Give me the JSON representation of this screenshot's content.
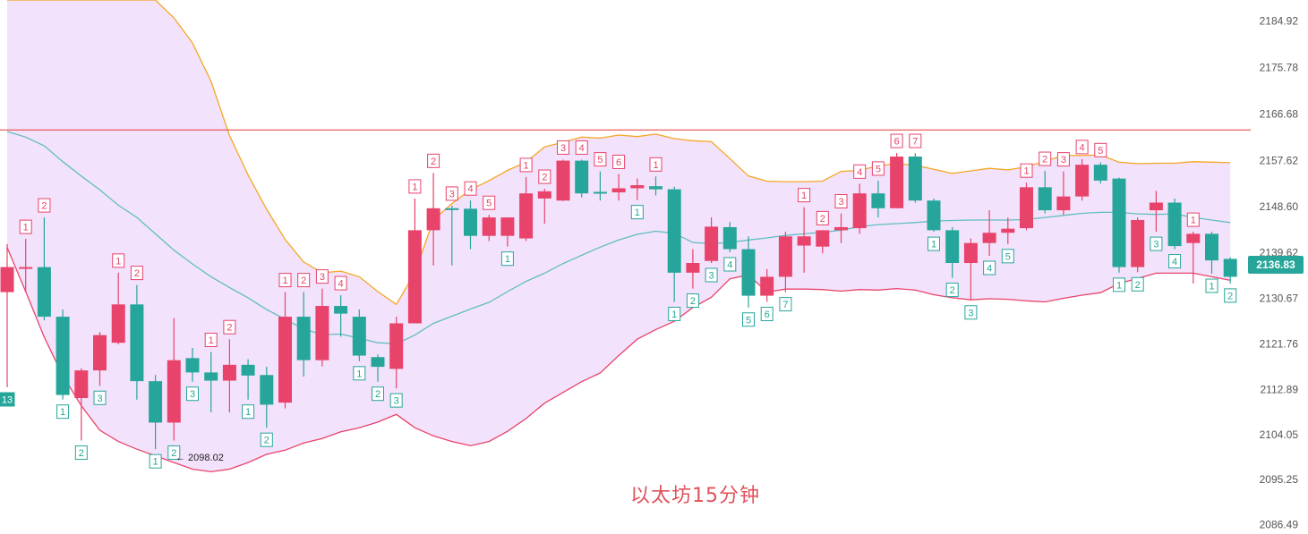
{
  "chart_data": {
    "type": "candlestick",
    "title": "以太坊15分钟",
    "colors": {
      "up": "#e8436b",
      "down": "#26a69a",
      "band_fill": "#f3e2fb",
      "upper_band": "#f5a623",
      "lower_band": "#e8436b",
      "middle_band": "#5fbfc0",
      "resistance_line": "#e53935",
      "current_price_bg": "#26a69a",
      "label_text": "#555555"
    },
    "y_axis": {
      "range": [
        2085.5,
        2189.0
      ],
      "ticks": [
        "2184.92",
        "2175.78",
        "2166.68",
        "2157.62",
        "2148.60",
        "2139.62",
        "2130.67",
        "2121.76",
        "2112.89",
        "2104.05",
        "2095.25",
        "2086.49"
      ],
      "tick_values": [
        2184.92,
        2175.78,
        2166.68,
        2157.62,
        2148.6,
        2139.62,
        2130.67,
        2121.76,
        2112.89,
        2104.05,
        2095.25,
        2086.49
      ]
    },
    "current_price": "2136.83",
    "low_annotation": "← 2098.02",
    "resistance_level": 2163.6,
    "candles": [
      {
        "o": 2131.9,
        "h": 2141.3,
        "l": 2113.3,
        "c": 2136.8,
        "cnt": "13",
        "pos": "below"
      },
      {
        "o": 2136.8,
        "h": 2142.3,
        "l": 2131.9,
        "c": 2136.8,
        "cnt": "1",
        "pos": "above"
      },
      {
        "o": 2136.8,
        "h": 2146.5,
        "l": 2126.4,
        "c": 2127.1,
        "cnt": "2",
        "pos": "above"
      },
      {
        "o": 2127.1,
        "h": 2128.5,
        "l": 2110.9,
        "c": 2111.8,
        "cnt": "1",
        "pos": "below"
      },
      {
        "o": 2111.2,
        "h": 2117.0,
        "l": 2102.9,
        "c": 2116.6,
        "cnt": "2",
        "pos": "below"
      },
      {
        "o": 2116.6,
        "h": 2124.1,
        "l": 2113.6,
        "c": 2123.5,
        "cnt": "3",
        "pos": "below"
      },
      {
        "o": 2122.0,
        "h": 2135.7,
        "l": 2121.7,
        "c": 2129.5,
        "cnt": "1",
        "pos": "above"
      },
      {
        "o": 2129.5,
        "h": 2133.3,
        "l": 2110.9,
        "c": 2114.5,
        "cnt": "2",
        "pos": "above"
      },
      {
        "o": 2114.5,
        "h": 2115.7,
        "l": 2101.2,
        "c": 2106.4,
        "cnt": "1",
        "pos": "below"
      },
      {
        "o": 2106.4,
        "h": 2126.8,
        "l": 2102.9,
        "c": 2118.6,
        "cnt": "2",
        "pos": "below"
      },
      {
        "o": 2119.0,
        "h": 2121.0,
        "l": 2114.4,
        "c": 2116.2,
        "cnt": "3",
        "pos": "below"
      },
      {
        "o": 2116.2,
        "h": 2120.2,
        "l": 2108.4,
        "c": 2114.6,
        "cnt": "1",
        "pos": "above"
      },
      {
        "o": 2114.6,
        "h": 2122.7,
        "l": 2108.4,
        "c": 2117.7,
        "cnt": "2",
        "pos": "above"
      },
      {
        "o": 2117.7,
        "h": 2118.8,
        "l": 2110.9,
        "c": 2115.6,
        "cnt": "1",
        "pos": "below"
      },
      {
        "o": 2115.7,
        "h": 2117.3,
        "l": 2105.4,
        "c": 2109.9,
        "cnt": "2",
        "pos": "below"
      },
      {
        "o": 2110.3,
        "h": 2131.9,
        "l": 2109.2,
        "c": 2127.1,
        "cnt": "1",
        "pos": "above"
      },
      {
        "o": 2127.1,
        "h": 2131.9,
        "l": 2115.4,
        "c": 2118.6,
        "cnt": "2",
        "pos": "above"
      },
      {
        "o": 2118.6,
        "h": 2132.6,
        "l": 2117.4,
        "c": 2129.2,
        "cnt": "3",
        "pos": "above"
      },
      {
        "o": 2129.2,
        "h": 2131.3,
        "l": 2123.2,
        "c": 2127.7,
        "cnt": "4",
        "pos": "above"
      },
      {
        "o": 2127.1,
        "h": 2128.5,
        "l": 2118.4,
        "c": 2119.5,
        "cnt": "1",
        "pos": "below"
      },
      {
        "o": 2119.2,
        "h": 2119.7,
        "l": 2114.4,
        "c": 2117.3,
        "cnt": "2",
        "pos": "below"
      },
      {
        "o": 2116.9,
        "h": 2127.1,
        "l": 2113.1,
        "c": 2125.8,
        "cnt": "3",
        "pos": "below"
      },
      {
        "o": 2125.8,
        "h": 2150.2,
        "l": 2125.8,
        "c": 2144.0,
        "cnt": "1",
        "pos": "above"
      },
      {
        "o": 2144.0,
        "h": 2155.2,
        "l": 2137.1,
        "c": 2148.3,
        "cnt": "2",
        "pos": "above"
      },
      {
        "o": 2148.3,
        "h": 2148.8,
        "l": 2137.1,
        "c": 2148.2,
        "cnt": "3",
        "pos": "above"
      },
      {
        "o": 2148.2,
        "h": 2149.8,
        "l": 2140.3,
        "c": 2142.9,
        "cnt": "4",
        "pos": "above"
      },
      {
        "o": 2142.9,
        "h": 2147.0,
        "l": 2141.9,
        "c": 2146.5,
        "cnt": "5",
        "pos": "above"
      },
      {
        "o": 2142.9,
        "h": 2146.5,
        "l": 2140.8,
        "c": 2146.5,
        "cnt": "1",
        "pos": "below"
      },
      {
        "o": 2142.4,
        "h": 2154.4,
        "l": 2141.9,
        "c": 2151.2,
        "cnt": "1",
        "pos": "above"
      },
      {
        "o": 2150.2,
        "h": 2152.1,
        "l": 2145.3,
        "c": 2151.6,
        "cnt": "2",
        "pos": "above"
      },
      {
        "o": 2149.8,
        "h": 2157.8,
        "l": 2149.7,
        "c": 2157.6,
        "cnt": "3",
        "pos": "above"
      },
      {
        "o": 2157.6,
        "h": 2157.8,
        "l": 2150.4,
        "c": 2151.2,
        "cnt": "4",
        "pos": "above"
      },
      {
        "o": 2151.5,
        "h": 2155.5,
        "l": 2149.8,
        "c": 2151.4,
        "cnt": "5",
        "pos": "above"
      },
      {
        "o": 2151.4,
        "h": 2155.0,
        "l": 2149.8,
        "c": 2152.2,
        "cnt": "6",
        "pos": "above"
      },
      {
        "o": 2152.2,
        "h": 2154.1,
        "l": 2149.9,
        "c": 2152.8,
        "cnt": "1",
        "pos": "below"
      },
      {
        "o": 2152.6,
        "h": 2154.5,
        "l": 2150.8,
        "c": 2152.0,
        "cnt": "1",
        "pos": "above"
      },
      {
        "o": 2152.0,
        "h": 2152.5,
        "l": 2130.0,
        "c": 2135.7,
        "cnt": "1",
        "pos": "below"
      },
      {
        "o": 2135.7,
        "h": 2140.3,
        "l": 2132.6,
        "c": 2137.6,
        "cnt": "2",
        "pos": "below"
      },
      {
        "o": 2138.0,
        "h": 2146.5,
        "l": 2137.6,
        "c": 2144.7,
        "cnt": "3",
        "pos": "below"
      },
      {
        "o": 2144.6,
        "h": 2145.6,
        "l": 2139.7,
        "c": 2140.3,
        "cnt": "4",
        "pos": "below"
      },
      {
        "o": 2140.3,
        "h": 2142.8,
        "l": 2128.9,
        "c": 2131.2,
        "cnt": "5",
        "pos": "below"
      },
      {
        "o": 2131.2,
        "h": 2136.4,
        "l": 2130.0,
        "c": 2134.9,
        "cnt": "6",
        "pos": "below"
      },
      {
        "o": 2134.9,
        "h": 2143.7,
        "l": 2131.9,
        "c": 2142.8,
        "cnt": "7",
        "pos": "below"
      },
      {
        "o": 2141.0,
        "h": 2148.5,
        "l": 2135.7,
        "c": 2142.8,
        "cnt": "1",
        "pos": "above"
      },
      {
        "o": 2140.8,
        "h": 2144.0,
        "l": 2139.5,
        "c": 2144.0,
        "cnt": "2",
        "pos": "above"
      },
      {
        "o": 2144.0,
        "h": 2147.3,
        "l": 2141.5,
        "c": 2144.6,
        "cnt": "3",
        "pos": "above"
      },
      {
        "o": 2144.4,
        "h": 2153.1,
        "l": 2143.3,
        "c": 2151.2,
        "cnt": "4",
        "pos": "above"
      },
      {
        "o": 2151.2,
        "h": 2153.7,
        "l": 2146.5,
        "c": 2148.3,
        "cnt": "5",
        "pos": "above"
      },
      {
        "o": 2148.3,
        "h": 2159.1,
        "l": 2148.3,
        "c": 2158.4,
        "cnt": "6",
        "pos": "above"
      },
      {
        "o": 2158.4,
        "h": 2159.1,
        "l": 2149.4,
        "c": 2149.8,
        "cnt": "7",
        "pos": "above"
      },
      {
        "o": 2149.8,
        "h": 2150.2,
        "l": 2143.7,
        "c": 2144.0,
        "cnt": "1",
        "pos": "below"
      },
      {
        "o": 2144.0,
        "h": 2144.6,
        "l": 2134.7,
        "c": 2137.6,
        "cnt": "2",
        "pos": "below"
      },
      {
        "o": 2137.6,
        "h": 2142.4,
        "l": 2130.3,
        "c": 2141.5,
        "cnt": "3",
        "pos": "below"
      },
      {
        "o": 2141.5,
        "h": 2147.9,
        "l": 2139.0,
        "c": 2143.5,
        "cnt": "4",
        "pos": "below"
      },
      {
        "o": 2143.5,
        "h": 2146.5,
        "l": 2141.3,
        "c": 2144.3,
        "cnt": "5",
        "pos": "below"
      },
      {
        "o": 2144.4,
        "h": 2153.3,
        "l": 2144.0,
        "c": 2152.4,
        "cnt": "1",
        "pos": "above"
      },
      {
        "o": 2152.4,
        "h": 2155.6,
        "l": 2147.3,
        "c": 2147.9,
        "cnt": "2",
        "pos": "above"
      },
      {
        "o": 2147.9,
        "h": 2155.5,
        "l": 2147.0,
        "c": 2150.6,
        "cnt": "3",
        "pos": "above"
      },
      {
        "o": 2150.6,
        "h": 2157.9,
        "l": 2149.8,
        "c": 2156.8,
        "cnt": "4",
        "pos": "above"
      },
      {
        "o": 2156.8,
        "h": 2157.3,
        "l": 2153.1,
        "c": 2153.7,
        "cnt": "5",
        "pos": "above"
      },
      {
        "o": 2154.1,
        "h": 2154.3,
        "l": 2135.7,
        "c": 2136.8,
        "cnt": "1",
        "pos": "below"
      },
      {
        "o": 2136.8,
        "h": 2146.5,
        "l": 2135.8,
        "c": 2146.0,
        "cnt": "2",
        "pos": "below"
      },
      {
        "o": 2147.9,
        "h": 2151.7,
        "l": 2143.7,
        "c": 2149.4,
        "cnt": "3",
        "pos": "below"
      },
      {
        "o": 2149.4,
        "h": 2150.2,
        "l": 2140.3,
        "c": 2140.9,
        "cnt": "4",
        "pos": "below"
      },
      {
        "o": 2141.5,
        "h": 2143.7,
        "l": 2133.6,
        "c": 2143.3,
        "cnt": "1",
        "pos": "above"
      },
      {
        "o": 2143.3,
        "h": 2143.7,
        "l": 2135.5,
        "c": 2138.1,
        "cnt": "1",
        "pos": "below"
      },
      {
        "o": 2138.4,
        "h": 2138.7,
        "l": 2133.6,
        "c": 2134.9,
        "cnt": "2",
        "pos": "below"
      }
    ],
    "upper_band": [
      [
        2189.0,
        2189.0,
        2189.0,
        2189.0,
        2189.0,
        2189.0,
        2189.0,
        2189.0,
        2189.0,
        2185.5,
        2180.6,
        2173.1,
        2162.5,
        2154.8,
        2148.1,
        2142.2,
        2137.8,
        2135.7,
        2136.0,
        2134.9,
        2132.0,
        2129.5,
        2135.7,
        2146.0,
        2149.2,
        2151.9,
        2153.7,
        2155.7,
        2157.3,
        2160.3,
        2161.2,
        2162.2,
        2162.0,
        2162.6,
        2162.3,
        2162.8,
        2161.9,
        2161.5,
        2161.3,
        2158.0,
        2154.6,
        2153.6,
        2153.5,
        2153.5,
        2153.6,
        2155.5,
        2155.7,
        2156.6,
        2157.0,
        2156.7,
        2155.9,
        2155.1,
        2155.6,
        2156.1,
        2155.8,
        2156.4,
        2157.5,
        2158.6,
        2158.6,
        2158.7,
        2157.3,
        2157.0,
        2157.1,
        2157.1,
        2157.4,
        2157.3,
        2157.2
      ]
    ],
    "middle_band": [
      2163.3,
      2162.2,
      2160.5,
      2157.4,
      2154.6,
      2151.9,
      2148.9,
      2146.5,
      2143.3,
      2140.1,
      2137.4,
      2134.9,
      2132.8,
      2130.8,
      2128.5,
      2126.6,
      2124.7,
      2123.6,
      2123.7,
      2122.9,
      2122.0,
      2121.8,
      2123.5,
      2125.8,
      2127.2,
      2128.6,
      2129.9,
      2132.0,
      2134.0,
      2135.6,
      2137.5,
      2139.1,
      2140.7,
      2142.1,
      2143.2,
      2143.8,
      2143.4,
      2141.6,
      2141.4,
      2141.6,
      2142.1,
      2142.5,
      2143.0,
      2143.3,
      2143.6,
      2144.0,
      2144.7,
      2145.1,
      2145.3,
      2145.5,
      2145.8,
      2145.9,
      2146.0,
      2146.0,
      2146.0,
      2146.1,
      2146.5,
      2146.9,
      2147.3,
      2147.5,
      2147.5,
      2147.2,
      2147.1,
      2147.2,
      2146.5,
      2146.0,
      2145.5
    ],
    "lower_band": [
      2140.6,
      2132.0,
      2123.1,
      2115.6,
      2109.7,
      2104.9,
      2102.7,
      2101.2,
      2099.9,
      2098.6,
      2097.3,
      2096.8,
      2097.3,
      2098.6,
      2100.2,
      2101.0,
      2102.4,
      2103.3,
      2104.6,
      2105.4,
      2106.5,
      2108.0,
      2105.4,
      2103.8,
      2102.7,
      2101.9,
      2102.7,
      2104.7,
      2107.2,
      2110.2,
      2112.3,
      2114.4,
      2116.1,
      2119.5,
      2122.7,
      2124.6,
      2126.2,
      2128.9,
      2130.9,
      2134.5,
      2135.3,
      2131.9,
      2132.5,
      2132.5,
      2132.4,
      2132.1,
      2132.4,
      2132.3,
      2132.6,
      2132.3,
      2131.4,
      2130.8,
      2130.4,
      2130.6,
      2130.5,
      2130.2,
      2130.0,
      2130.7,
      2131.3,
      2131.8,
      2133.6,
      2134.6,
      2135.6,
      2135.6,
      2135.6,
      2134.9,
      2134.2
    ]
  }
}
